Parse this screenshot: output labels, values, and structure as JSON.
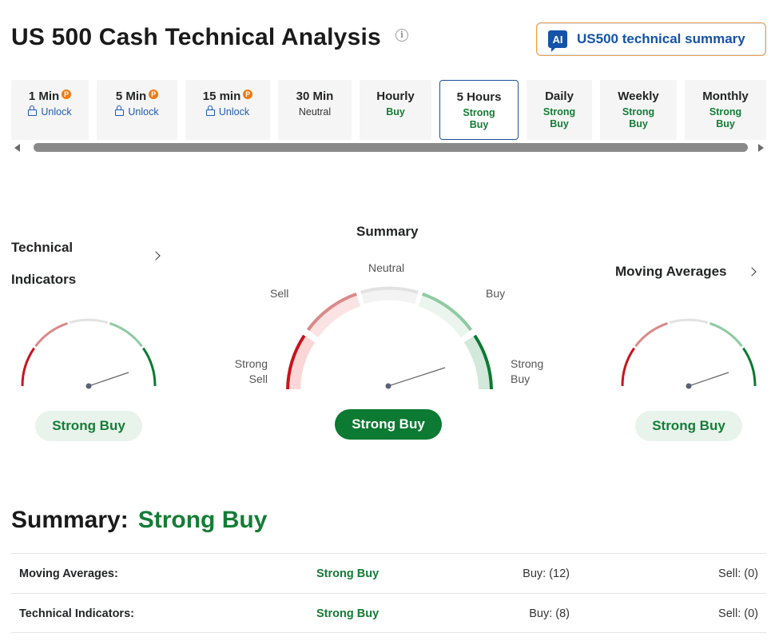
{
  "header": {
    "title": "US 500 Cash Technical Analysis",
    "info_icon": "info-icon",
    "ai_button": {
      "badge": "AI",
      "label": "US500 technical summary"
    }
  },
  "timeframes": [
    {
      "name": "1 Min",
      "pro": true,
      "status": "Unlock",
      "type": "unlock"
    },
    {
      "name": "5 Min",
      "pro": true,
      "status": "Unlock",
      "type": "unlock"
    },
    {
      "name": "15 min",
      "pro": true,
      "status": "Unlock",
      "type": "unlock"
    },
    {
      "name": "30 Min",
      "pro": false,
      "status": "Neutral",
      "type": "neutral"
    },
    {
      "name": "Hourly",
      "pro": false,
      "status": "Buy",
      "type": "buy"
    },
    {
      "name": "5 Hours",
      "pro": false,
      "status": "Strong Buy",
      "type": "buy",
      "active": true
    },
    {
      "name": "Daily",
      "pro": false,
      "status": "Strong Buy",
      "type": "buy"
    },
    {
      "name": "Weekly",
      "pro": false,
      "status": "Strong Buy",
      "type": "buy"
    },
    {
      "name": "Monthly",
      "pro": false,
      "status": "Strong Buy",
      "type": "buy"
    }
  ],
  "pro_badge": "P",
  "gauges": {
    "technical_indicators": {
      "title_line1": "Technical",
      "title_line2": "Indicators",
      "result": "Strong Buy"
    },
    "summary": {
      "title": "Summary",
      "result": "Strong Buy",
      "labels": {
        "strong_sell": "Strong\nSell",
        "sell": "Sell",
        "neutral": "Neutral",
        "buy": "Buy",
        "strong_buy": "Strong\nBuy"
      }
    },
    "moving_averages": {
      "title": "Moving Averages",
      "result": "Strong Buy"
    }
  },
  "summary": {
    "label": "Summary:",
    "value": "Strong Buy",
    "rows": [
      {
        "name": "Moving Averages:",
        "signal": "Strong Buy",
        "buy": "Buy: (12)",
        "sell": "Sell: (0)"
      },
      {
        "name": "Technical Indicators:",
        "signal": "Strong Buy",
        "buy": "Buy: (8)",
        "sell": "Sell: (0)"
      }
    ]
  },
  "colors": {
    "strong_sell": "#c8141e",
    "sell": "#d98a88",
    "neutral": "#e2e2e2",
    "buy": "#8fcaa2",
    "strong_buy": "#0c7a32",
    "accent_blue": "#1453a8"
  }
}
